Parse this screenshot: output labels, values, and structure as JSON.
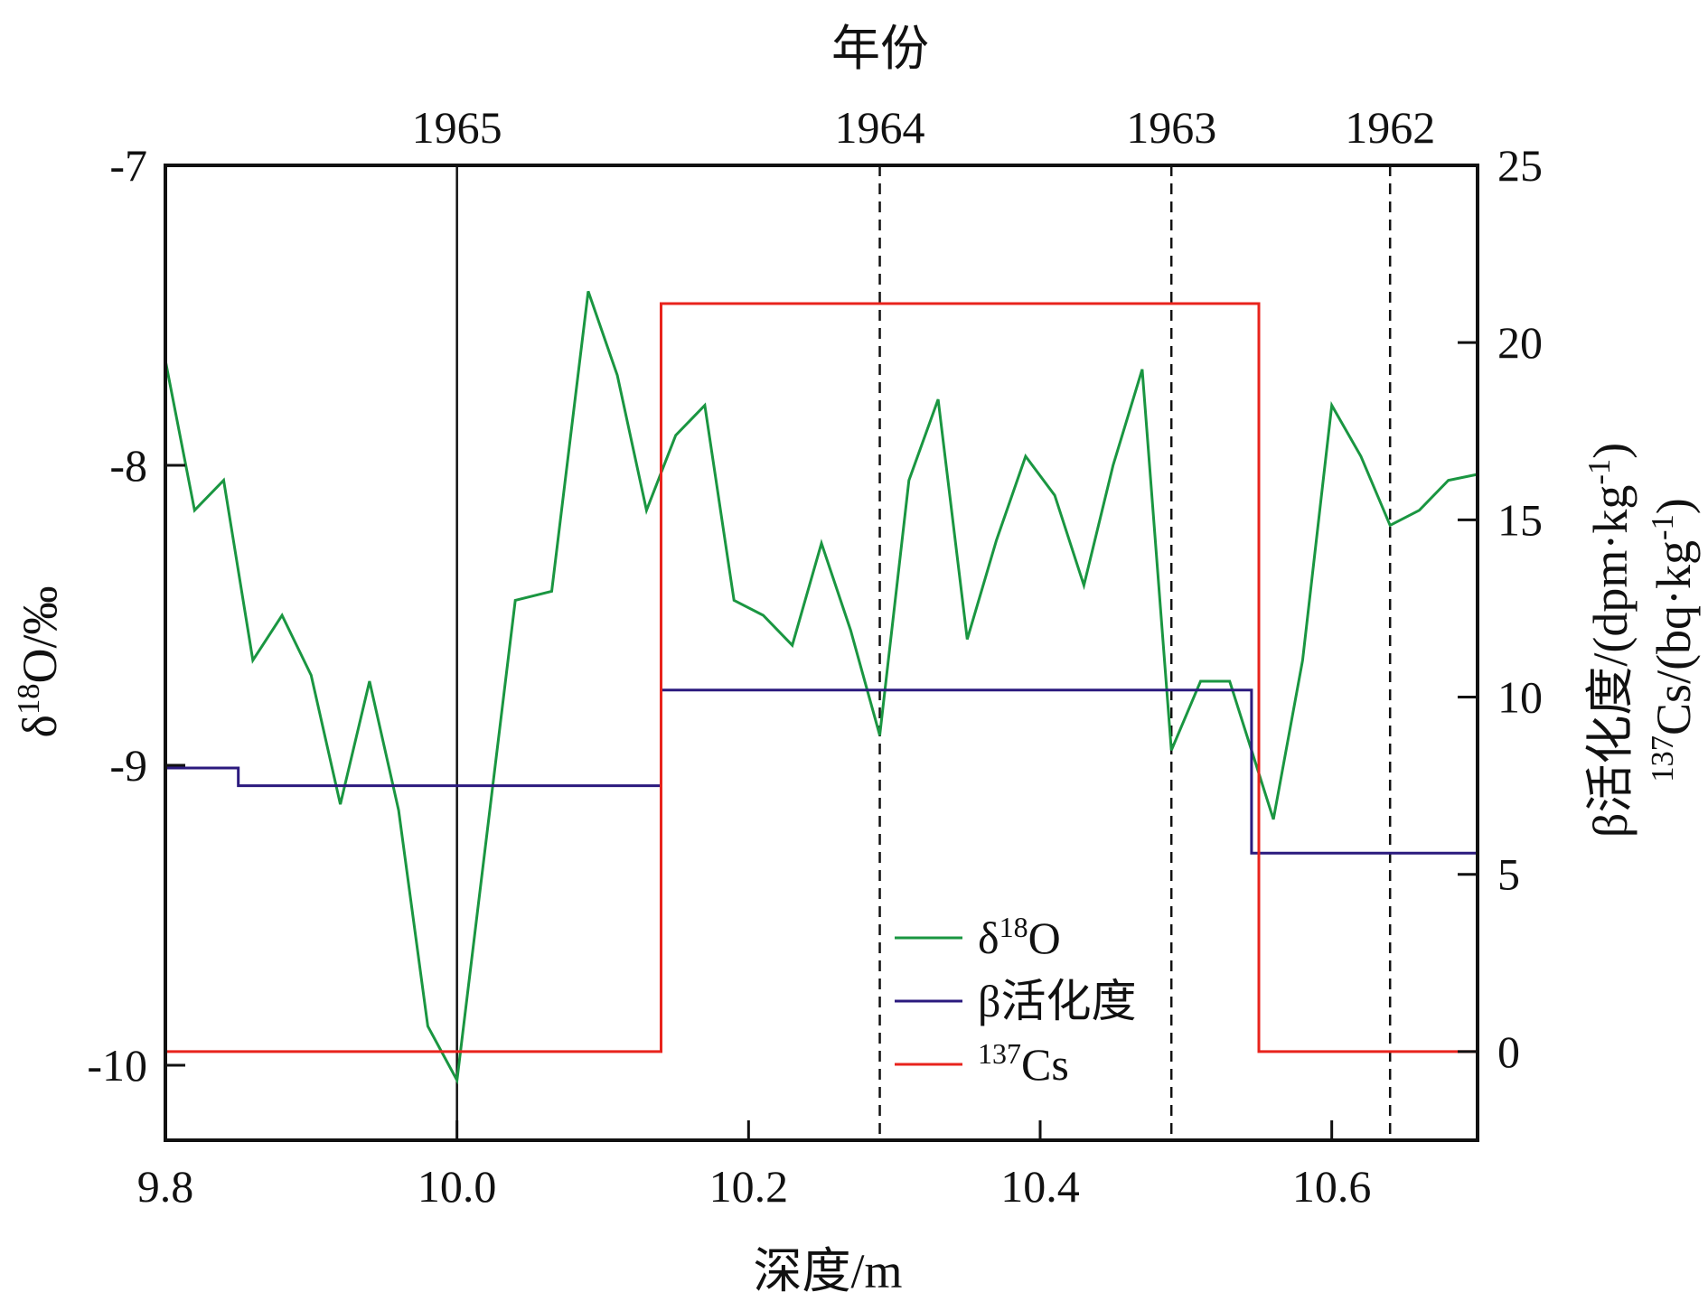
{
  "chart_data": {
    "type": "line",
    "title": "",
    "xlabel": "深度/m",
    "x2label": "年份",
    "ylabel": "δ18O/‰",
    "y2label_line1": "β活化度/(dpm·kg-1)",
    "y2label_line2": "137Cs/(bq·kg-1)",
    "xlim": [
      9.8,
      10.7
    ],
    "ylim": [
      -10.25,
      -7.0
    ],
    "y2lim": [
      -2.5,
      25
    ],
    "grid": false,
    "x_ticks": [
      9.8,
      10.0,
      10.2,
      10.4,
      10.6
    ],
    "x_tick_labels": [
      "9.8",
      "10.0",
      "10.2",
      "10.4",
      "10.6"
    ],
    "y_ticks": [
      -7,
      -8,
      -9,
      -10
    ],
    "y_tick_labels": [
      "-7",
      "-8",
      "-9",
      "-10"
    ],
    "y2_ticks": [
      0,
      5,
      10,
      15,
      20,
      25
    ],
    "y2_tick_labels": [
      "0",
      "5",
      "10",
      "15",
      "20",
      "25"
    ],
    "year_markers": [
      {
        "label": "1965",
        "x": 10.0,
        "style": "solid"
      },
      {
        "label": "1964",
        "x": 10.29,
        "style": "dashed"
      },
      {
        "label": "1963",
        "x": 10.49,
        "style": "dashed"
      },
      {
        "label": "1962",
        "x": 10.64,
        "style": "dashed"
      }
    ],
    "legend_position": "bottom-center",
    "series": [
      {
        "name": "δ18O",
        "axis": "left",
        "color": "#1a9641",
        "step": false,
        "x": [
          9.8,
          9.82,
          9.84,
          9.86,
          9.88,
          9.9,
          9.92,
          9.94,
          9.96,
          9.98,
          10.0,
          10.04,
          10.065,
          10.09,
          10.11,
          10.13,
          10.15,
          10.17,
          10.19,
          10.21,
          10.23,
          10.25,
          10.27,
          10.29,
          10.31,
          10.33,
          10.35,
          10.37,
          10.39,
          10.41,
          10.43,
          10.45,
          10.47,
          10.49,
          10.51,
          10.53,
          10.56,
          10.58,
          10.6,
          10.62,
          10.64,
          10.66,
          10.68,
          10.7
        ],
        "y": [
          -7.65,
          -8.15,
          -8.05,
          -8.65,
          -8.5,
          -8.7,
          -9.13,
          -8.72,
          -9.15,
          -9.87,
          -10.05,
          -8.45,
          -8.42,
          -7.42,
          -7.7,
          -8.15,
          -7.9,
          -7.8,
          -8.45,
          -8.5,
          -8.6,
          -8.26,
          -8.55,
          -8.9,
          -8.05,
          -7.78,
          -8.58,
          -8.25,
          -7.97,
          -8.1,
          -8.4,
          -8.0,
          -7.68,
          -8.95,
          -8.72,
          -8.72,
          -9.18,
          -8.65,
          -7.8,
          -7.97,
          -8.2,
          -8.15,
          -8.05,
          -8.03
        ]
      },
      {
        "name": "β活化度",
        "axis": "right",
        "color": "#2b1a7e",
        "step": true,
        "x": [
          9.8,
          9.85,
          9.85,
          10.14,
          10.14,
          10.545,
          10.545,
          10.7
        ],
        "y": [
          8.0,
          8.0,
          7.5,
          7.5,
          10.2,
          10.2,
          5.6,
          5.6
        ]
      },
      {
        "name": "137Cs",
        "axis": "right",
        "color": "#e8231c",
        "step": true,
        "x": [
          9.8,
          10.14,
          10.14,
          10.55,
          10.55,
          10.7
        ],
        "y": [
          0,
          0,
          21.1,
          21.1,
          0,
          0
        ]
      }
    ]
  }
}
